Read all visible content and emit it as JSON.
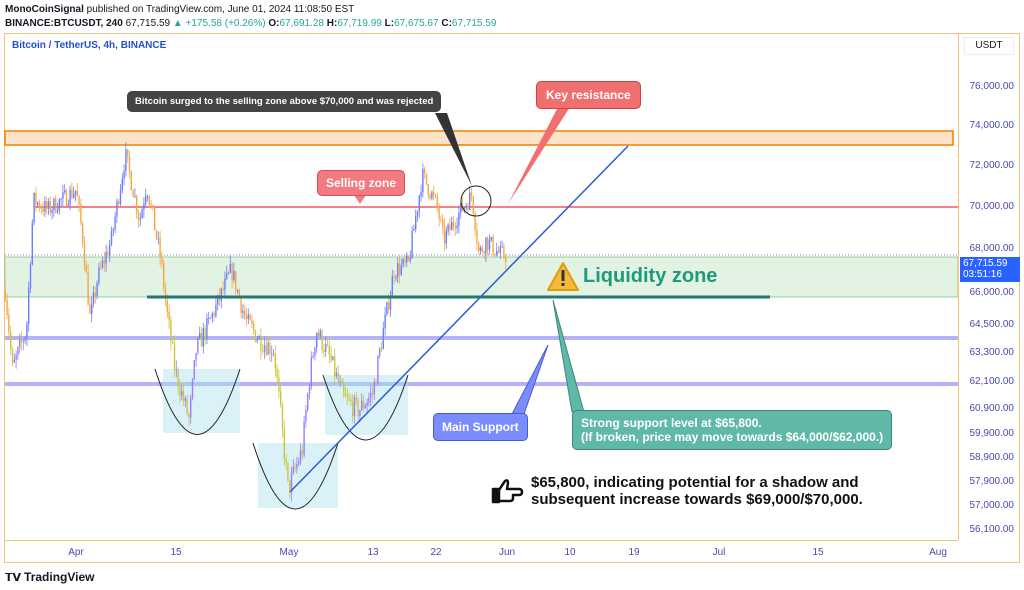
{
  "header": {
    "author": "MonoCoinSignal",
    "published": " published on TradingView.com, June 01, 2024 11:08:50 EST",
    "symbol": "BINANCE:BTCUSDT, 240",
    "last": "67,715.59",
    "change": "▲ +175.58 (+0.26%)",
    "o_label": "O:",
    "o": "67,691.28",
    "h_label": "H:",
    "h": "67,719.99",
    "l_label": "L:",
    "l": "67,675.67",
    "c_label": "C:",
    "c": "67,715.59"
  },
  "legend": "Bitcoin / TetherUS, 4h, BINANCE",
  "currency": "USDT",
  "price_ticks": [
    "76,000.00",
    "74,000.00",
    "72,000.00",
    "70,000.00",
    "68,000.00",
    "66,000.00",
    "64,500.00",
    "63,300.00",
    "62,100.00",
    "60,900.00",
    "59,900.00",
    "58,900.00",
    "57,900.00",
    "57,000.00",
    "56,100.00"
  ],
  "time_ticks": [
    "Apr",
    "15",
    "May",
    "13",
    "22",
    "Jun",
    "10",
    "19",
    "Jul",
    "15",
    "Aug"
  ],
  "last_price_label": {
    "price": "67,715.59",
    "countdown": "03:51:16"
  },
  "annotations": {
    "rejected": "Bitcoin surged to the selling zone above $70,000 and was rejected",
    "key_resistance": "Key resistance",
    "selling_zone": "Selling zone",
    "liquidity_zone": "Liquidity zone",
    "main_support": "Main Support",
    "strong_support_1": "Strong support level at $65,800.",
    "strong_support_2": "(If broken, price may move towards $64,000/$62,000.)",
    "note_1": "$65,800, indicating potential for a shadow and",
    "note_2": "subsequent increase towards $69,000/$70,000."
  },
  "footer_logo": "TradingView",
  "colors": {
    "up": "#6b7cff",
    "down": "#f5a742",
    "resistance": "#f23645",
    "liquidity": "#4caf50",
    "support_line": "#26776f",
    "trend": "#2a5bd7",
    "price_label": "#2962ff"
  },
  "chart_data": {
    "type": "candlestick",
    "symbol": "BTCUSDT",
    "interval": "4h",
    "levels": {
      "key_resistance_zone": [
        72900,
        73400
      ],
      "selling_zone": 70000,
      "liquidity_zone": [
        65800,
        67800
      ],
      "strong_support": 65800,
      "support_1": 64000,
      "support_2": 62000
    },
    "approx_path": [
      [
        "03-22",
        66140
      ],
      [
        "03-23",
        62600
      ],
      [
        "03-25",
        64300
      ],
      [
        "03-26",
        70340
      ],
      [
        "03-28",
        69860
      ],
      [
        "04-01",
        70830
      ],
      [
        "04-02",
        68430
      ],
      [
        "04-03",
        64730
      ],
      [
        "04-04",
        66590
      ],
      [
        "04-06",
        68430
      ],
      [
        "04-08",
        72550
      ],
      [
        "04-10",
        69380
      ],
      [
        "04-11",
        71070
      ],
      [
        "04-13",
        67500
      ],
      [
        "04-14",
        64730
      ],
      [
        "04-15",
        62600
      ],
      [
        "04-17",
        60450
      ],
      [
        "04-18",
        63430
      ],
      [
        "04-20",
        64730
      ],
      [
        "04-23",
        67050
      ],
      [
        "04-25",
        64730
      ],
      [
        "04-27",
        63860
      ],
      [
        "04-29",
        63430
      ],
      [
        "05-01",
        57600
      ],
      [
        "05-03",
        59230
      ],
      [
        "05-04",
        62180
      ],
      [
        "05-05",
        64300
      ],
      [
        "05-07",
        63010
      ],
      [
        "05-09",
        61300
      ],
      [
        "05-11",
        60860
      ],
      [
        "05-13",
        61620
      ],
      [
        "05-15",
        65200
      ],
      [
        "05-16",
        67050
      ],
      [
        "05-18",
        67270
      ],
      [
        "05-20",
        71560
      ],
      [
        "05-22",
        70100
      ],
      [
        "05-23",
        68430
      ],
      [
        "05-25",
        69620
      ],
      [
        "05-27",
        70590
      ],
      [
        "05-28",
        67730
      ],
      [
        "05-29",
        68430
      ],
      [
        "05-31",
        67730
      ],
      [
        "06-01",
        67715.59
      ]
    ]
  }
}
